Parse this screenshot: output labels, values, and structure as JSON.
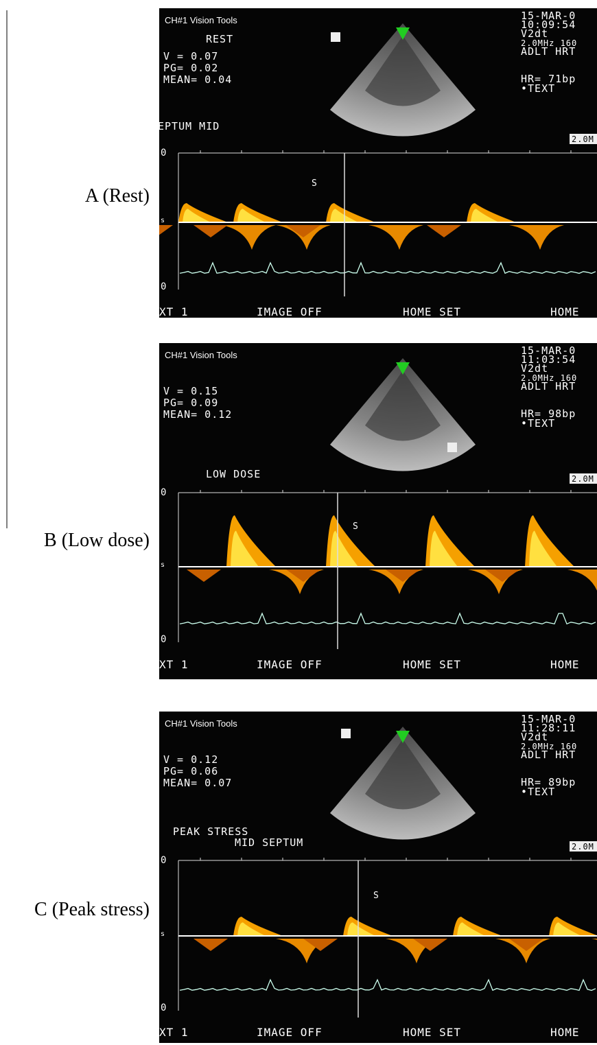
{
  "figure": {
    "panels": [
      {
        "label": "A (Rest)",
        "header": "CH#1 Vision Tools",
        "mode": "REST",
        "measurements": [
          "V = 0.07",
          "PG= 0.02",
          "MEAN= 0.04"
        ],
        "info": [
          "15-MAR-0",
          "10:09:54",
          "V2dt",
          "2.0MHz 160",
          "ADLT HRT"
        ],
        "hr": "HR= 71bp",
        "text_marker": "•TEXT",
        "scale_box": "2.0M",
        "site": [
          "EPTUM MID"
        ],
        "axis_labels": [
          "0",
          "s",
          "0"
        ],
        "marker": "S",
        "menu": [
          "XT 1",
          "IMAGE OFF",
          "HOME SET",
          "HOME"
        ]
      },
      {
        "label": "B (Low dose)",
        "header": "CH#1 Vision Tools",
        "measurements": [
          "V = 0.15",
          "PG= 0.09",
          "MEAN= 0.12"
        ],
        "info": [
          "15-MAR-0",
          "11:03:54",
          "V2dt",
          "2.0MHz 160",
          "ADLT HRT"
        ],
        "hr": "HR= 98bp",
        "text_marker": "•TEXT",
        "scale_box": "2.0M",
        "site": [
          "LOW  DOSE"
        ],
        "axis_labels": [
          "0",
          "s",
          "0"
        ],
        "marker": "S",
        "menu": [
          "XT 1",
          "IMAGE OFF",
          "HOME SET",
          "HOME"
        ]
      },
      {
        "label": "C (Peak stress)",
        "header": "CH#1 Vision Tools",
        "measurements": [
          "V = 0.12",
          "PG= 0.06",
          "MEAN= 0.07"
        ],
        "info": [
          "15-MAR-0",
          "11:28:11",
          "V2dt",
          "2.0MHz 160",
          "ADLT HRT"
        ],
        "hr": "HR= 89bp",
        "text_marker": "•TEXT",
        "scale_box": "2.0M",
        "site": [
          "PEAK STRESS",
          "MID SEPTUM"
        ],
        "axis_labels": [
          "0",
          "s",
          "0"
        ],
        "marker": "S",
        "menu": [
          "XT 1",
          "IMAGE OFF",
          "HOME SET",
          "HOME"
        ]
      }
    ]
  }
}
